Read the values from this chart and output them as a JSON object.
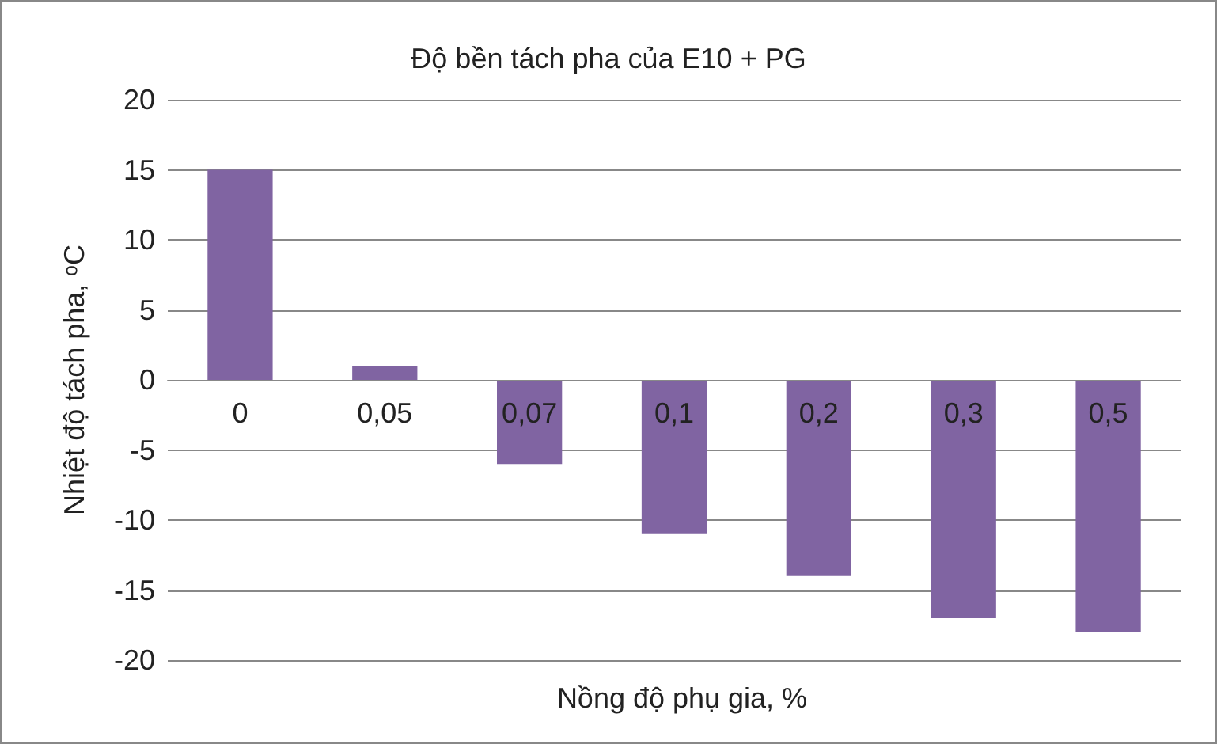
{
  "chart_data": {
    "type": "bar",
    "title": "Độ bền tách pha của E10 + PG",
    "xlabel": "Nồng độ phụ gia, %",
    "ylabel": "Nhiệt độ tách pha, ᵒC",
    "categories": [
      "0",
      "0,05",
      "0,07",
      "0,1",
      "0,2",
      "0,3",
      "0,5"
    ],
    "values": [
      15,
      1,
      -6,
      -11,
      -14,
      -17,
      -18
    ],
    "color": "#8064a2",
    "ylim": [
      -20,
      20
    ],
    "yticks": [
      -20,
      -15,
      -10,
      -5,
      0,
      5,
      10,
      15,
      20
    ],
    "grid": "y"
  }
}
